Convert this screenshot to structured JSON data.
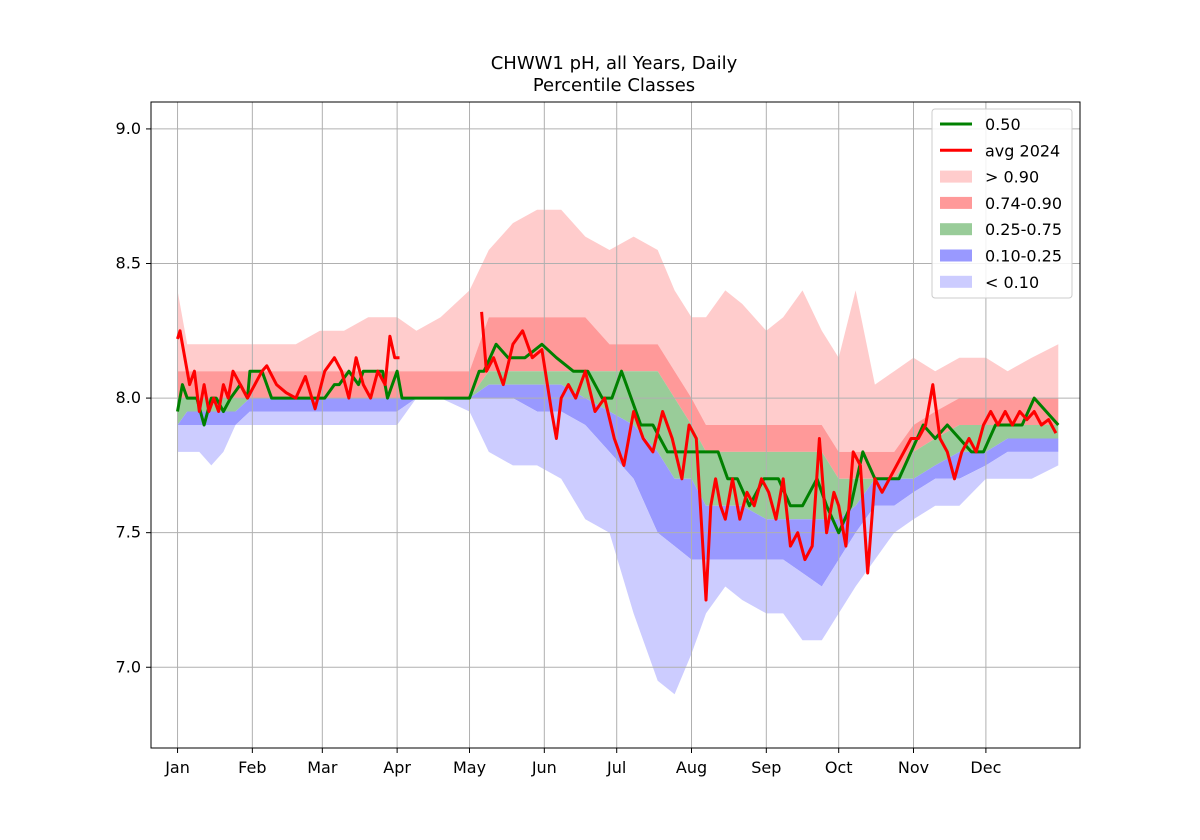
{
  "chart_data": {
    "type": "area",
    "title": "CHWW1 pH, all Years, Daily",
    "subtitle": "Percentile Classes",
    "xlabel": "",
    "ylabel": "",
    "x_unit": "day of year",
    "xlim": [
      -10,
      375
    ],
    "ylim": [
      6.7,
      9.1
    ],
    "grid": true,
    "legend_position": "top-right",
    "x_ticks": [
      {
        "label": "Jan",
        "day": 1
      },
      {
        "label": "Feb",
        "day": 32
      },
      {
        "label": "Mar",
        "day": 61
      },
      {
        "label": "Apr",
        "day": 92
      },
      {
        "label": "May",
        "day": 122
      },
      {
        "label": "Jun",
        "day": 153
      },
      {
        "label": "Jul",
        "day": 183
      },
      {
        "label": "Aug",
        "day": 214
      },
      {
        "label": "Sep",
        "day": 245
      },
      {
        "label": "Oct",
        "day": 275
      },
      {
        "label": "Nov",
        "day": 306
      },
      {
        "label": "Dec",
        "day": 336
      }
    ],
    "y_ticks": [
      "7.0",
      "7.5",
      "8.0",
      "8.5",
      "9.0"
    ],
    "band_days": [
      1,
      5,
      10,
      15,
      20,
      25,
      31,
      40,
      50,
      60,
      70,
      80,
      92,
      100,
      110,
      122,
      130,
      140,
      150,
      160,
      170,
      180,
      190,
      200,
      207,
      214,
      220,
      228,
      235,
      245,
      252,
      260,
      268,
      275,
      282,
      290,
      298,
      306,
      315,
      325,
      336,
      345,
      355,
      366
    ],
    "series": [
      {
        "name": "> 0.90",
        "kind": "band",
        "color": "#ffcccc",
        "lower": [
          8.1,
          8.1,
          8.1,
          8.1,
          8.1,
          8.1,
          8.1,
          8.1,
          8.1,
          8.1,
          8.1,
          8.1,
          8.1,
          8.1,
          8.1,
          8.1,
          8.3,
          8.3,
          8.3,
          8.3,
          8.3,
          8.2,
          8.2,
          8.2,
          8.1,
          8.0,
          7.9,
          7.9,
          7.9,
          7.9,
          7.9,
          7.9,
          7.9,
          7.8,
          7.8,
          7.8,
          7.8,
          7.9,
          7.95,
          8.0,
          8.0,
          8.0,
          8.0,
          8.0
        ],
        "upper": [
          8.4,
          8.2,
          8.2,
          8.2,
          8.2,
          8.2,
          8.2,
          8.2,
          8.2,
          8.25,
          8.25,
          8.3,
          8.3,
          8.25,
          8.3,
          8.4,
          8.55,
          8.65,
          8.7,
          8.7,
          8.6,
          8.55,
          8.6,
          8.55,
          8.4,
          8.3,
          8.3,
          8.4,
          8.35,
          8.25,
          8.3,
          8.4,
          8.25,
          8.15,
          8.4,
          8.05,
          8.1,
          8.15,
          8.1,
          8.15,
          8.15,
          8.1,
          8.15,
          8.2
        ]
      },
      {
        "name": "0.74-0.90",
        "kind": "band",
        "color": "#ff9999",
        "lower": [
          8.0,
          8.0,
          8.0,
          8.0,
          8.0,
          8.0,
          8.0,
          8.0,
          8.0,
          8.0,
          8.0,
          8.0,
          8.0,
          8.0,
          8.0,
          8.0,
          8.1,
          8.1,
          8.1,
          8.1,
          8.1,
          8.1,
          8.1,
          8.1,
          8.0,
          7.9,
          7.8,
          7.8,
          7.8,
          7.8,
          7.8,
          7.8,
          7.8,
          7.7,
          7.7,
          7.7,
          7.7,
          7.8,
          7.85,
          7.9,
          7.9,
          7.9,
          7.9,
          7.9
        ],
        "upper": [
          8.1,
          8.1,
          8.1,
          8.1,
          8.1,
          8.1,
          8.1,
          8.1,
          8.1,
          8.1,
          8.1,
          8.1,
          8.1,
          8.1,
          8.1,
          8.1,
          8.3,
          8.3,
          8.3,
          8.3,
          8.3,
          8.2,
          8.2,
          8.2,
          8.1,
          8.0,
          7.9,
          7.9,
          7.9,
          7.9,
          7.9,
          7.9,
          7.9,
          7.8,
          7.8,
          7.8,
          7.8,
          7.9,
          7.95,
          8.0,
          8.0,
          8.0,
          8.0,
          8.0
        ]
      },
      {
        "name": "0.25-0.75",
        "kind": "band",
        "color": "#99cc99",
        "lower": [
          7.9,
          7.95,
          7.95,
          7.95,
          7.95,
          7.95,
          8.0,
          8.0,
          8.0,
          8.0,
          8.0,
          8.0,
          8.0,
          8.0,
          8.0,
          8.0,
          8.05,
          8.05,
          8.05,
          8.05,
          8.0,
          7.95,
          7.9,
          7.8,
          7.7,
          7.7,
          7.6,
          7.6,
          7.6,
          7.55,
          7.55,
          7.55,
          7.55,
          7.55,
          7.6,
          7.7,
          7.7,
          7.7,
          7.75,
          7.8,
          7.8,
          7.85,
          7.85,
          7.85
        ],
        "upper": [
          8.0,
          8.0,
          8.0,
          8.0,
          8.0,
          8.0,
          8.0,
          8.0,
          8.0,
          8.0,
          8.0,
          8.0,
          8.0,
          8.0,
          8.0,
          8.0,
          8.1,
          8.1,
          8.1,
          8.1,
          8.1,
          8.1,
          8.1,
          8.1,
          8.0,
          7.9,
          7.8,
          7.8,
          7.8,
          7.8,
          7.8,
          7.8,
          7.8,
          7.7,
          7.7,
          7.7,
          7.7,
          7.8,
          7.85,
          7.9,
          7.9,
          7.9,
          7.9,
          7.9
        ]
      },
      {
        "name": "0.10-0.25",
        "kind": "band",
        "color": "#9999ff",
        "lower": [
          7.9,
          7.9,
          7.9,
          7.9,
          7.9,
          7.9,
          7.95,
          7.95,
          7.95,
          7.95,
          7.95,
          7.95,
          7.95,
          8.0,
          8.0,
          8.0,
          8.0,
          8.0,
          7.95,
          7.95,
          7.9,
          7.8,
          7.7,
          7.5,
          7.45,
          7.4,
          7.4,
          7.4,
          7.4,
          7.4,
          7.4,
          7.35,
          7.3,
          7.4,
          7.5,
          7.6,
          7.6,
          7.65,
          7.7,
          7.7,
          7.75,
          7.8,
          7.8,
          7.8
        ],
        "upper": [
          7.9,
          7.95,
          7.95,
          7.95,
          7.95,
          7.95,
          8.0,
          8.0,
          8.0,
          8.0,
          8.0,
          8.0,
          8.0,
          8.0,
          8.0,
          8.0,
          8.05,
          8.05,
          8.05,
          8.05,
          8.0,
          7.95,
          7.9,
          7.8,
          7.7,
          7.7,
          7.6,
          7.6,
          7.6,
          7.55,
          7.55,
          7.55,
          7.55,
          7.55,
          7.6,
          7.7,
          7.7,
          7.7,
          7.75,
          7.8,
          7.8,
          7.85,
          7.85,
          7.85
        ]
      },
      {
        "name": "< 0.10",
        "kind": "band",
        "color": "#ccccff",
        "lower": [
          7.8,
          7.8,
          7.8,
          7.75,
          7.8,
          7.9,
          7.9,
          7.9,
          7.9,
          7.9,
          7.9,
          7.9,
          7.9,
          8.0,
          8.0,
          7.95,
          7.8,
          7.75,
          7.75,
          7.7,
          7.55,
          7.5,
          7.2,
          6.95,
          6.9,
          7.05,
          7.2,
          7.3,
          7.25,
          7.2,
          7.2,
          7.1,
          7.1,
          7.2,
          7.3,
          7.4,
          7.5,
          7.55,
          7.6,
          7.6,
          7.7,
          7.7,
          7.7,
          7.75
        ],
        "upper": [
          7.9,
          7.9,
          7.9,
          7.9,
          7.9,
          7.9,
          7.95,
          7.95,
          7.95,
          7.95,
          7.95,
          7.95,
          7.95,
          8.0,
          8.0,
          8.0,
          8.0,
          8.0,
          7.95,
          7.95,
          7.9,
          7.8,
          7.7,
          7.5,
          7.45,
          7.4,
          7.4,
          7.4,
          7.4,
          7.4,
          7.4,
          7.35,
          7.3,
          7.4,
          7.5,
          7.6,
          7.6,
          7.65,
          7.7,
          7.7,
          7.75,
          7.8,
          7.8,
          7.8
        ]
      },
      {
        "name": "0.50",
        "kind": "line",
        "color": "#008000",
        "x": [
          1,
          3,
          5,
          9,
          12,
          15,
          17,
          20,
          23,
          27,
          30,
          31,
          33,
          36,
          40,
          45,
          55,
          62,
          66,
          68,
          72,
          76,
          78,
          82,
          86,
          88,
          90,
          92,
          94,
          105,
          110,
          112,
          118,
          122,
          126,
          128,
          133,
          138,
          140,
          145,
          152,
          158,
          165,
          171,
          177,
          181,
          185,
          189,
          193,
          198,
          204,
          209,
          213,
          217,
          221,
          225,
          229,
          233,
          238,
          244,
          250,
          255,
          260,
          266,
          270,
          275,
          280,
          285,
          290,
          295,
          300,
          305,
          310,
          315,
          320,
          325,
          330,
          335,
          340,
          346,
          351,
          356,
          366
        ],
        "y": [
          7.95,
          8.05,
          8.0,
          8.0,
          7.9,
          8.0,
          8.0,
          7.95,
          8.0,
          8.05,
          8.0,
          8.1,
          8.1,
          8.1,
          8.0,
          8.0,
          8.0,
          8.0,
          8.05,
          8.05,
          8.1,
          8.05,
          8.1,
          8.1,
          8.1,
          8.0,
          8.05,
          8.1,
          8.0,
          8.0,
          8.0,
          8.0,
          8.0,
          8.0,
          8.1,
          8.1,
          8.2,
          8.15,
          8.15,
          8.15,
          8.2,
          8.15,
          8.1,
          8.1,
          8.0,
          8.0,
          8.1,
          8.0,
          7.9,
          7.9,
          7.8,
          7.8,
          7.8,
          7.8,
          7.8,
          7.8,
          7.7,
          7.7,
          7.6,
          7.7,
          7.7,
          7.6,
          7.6,
          7.7,
          7.6,
          7.5,
          7.6,
          7.8,
          7.7,
          7.7,
          7.7,
          7.8,
          7.9,
          7.85,
          7.9,
          7.85,
          7.8,
          7.8,
          7.9,
          7.9,
          7.9,
          8.0,
          7.9
        ]
      },
      {
        "name": "avg 2024",
        "kind": "line",
        "color": "#ff0000",
        "x": [
          1,
          2,
          4,
          6,
          8,
          10,
          12,
          14,
          16,
          18,
          20,
          22,
          24,
          27,
          30,
          33,
          36,
          38,
          42,
          46,
          50,
          54,
          58,
          62,
          66,
          69,
          72,
          75,
          78,
          81,
          84,
          87,
          89,
          91,
          93
        ],
        "y": [
          8.22,
          8.25,
          8.15,
          8.05,
          8.1,
          7.95,
          8.05,
          7.95,
          8.0,
          7.95,
          8.05,
          8.0,
          8.1,
          8.05,
          8.0,
          8.05,
          8.1,
          8.12,
          8.05,
          8.02,
          8.0,
          8.08,
          7.96,
          8.1,
          8.15,
          8.1,
          8.0,
          8.15,
          8.05,
          8.0,
          8.1,
          8.05,
          8.23,
          8.15,
          8.15
        ]
      },
      {
        "name": "avg 2024",
        "kind": "line",
        "color": "#ff0000",
        "legend": false,
        "x": [
          127,
          129,
          132,
          136,
          140,
          144,
          148,
          152,
          156,
          158,
          160,
          163,
          166,
          170,
          174,
          178,
          182,
          186,
          190,
          194,
          198,
          202,
          206,
          210,
          213,
          216,
          218,
          220,
          222,
          224,
          226,
          228,
          231,
          234,
          237,
          240,
          243,
          246,
          249,
          252,
          255,
          258,
          261,
          264,
          267,
          270,
          273,
          275,
          278,
          281,
          284,
          287,
          290,
          293,
          296,
          299,
          302,
          305,
          308,
          311,
          314,
          317,
          320,
          323,
          326,
          329,
          332,
          335,
          338,
          341,
          344,
          347,
          350,
          353,
          356,
          359,
          362,
          365
        ],
        "y": [
          8.32,
          8.1,
          8.15,
          8.05,
          8.2,
          8.25,
          8.15,
          8.18,
          7.95,
          7.85,
          8.0,
          8.05,
          8.0,
          8.1,
          7.95,
          8.0,
          7.85,
          7.75,
          7.95,
          7.85,
          7.8,
          7.95,
          7.85,
          7.7,
          7.9,
          7.85,
          7.55,
          7.25,
          7.6,
          7.7,
          7.6,
          7.55,
          7.7,
          7.55,
          7.65,
          7.6,
          7.7,
          7.65,
          7.55,
          7.7,
          7.45,
          7.5,
          7.4,
          7.45,
          7.85,
          7.5,
          7.65,
          7.6,
          7.45,
          7.8,
          7.75,
          7.35,
          7.7,
          7.65,
          7.7,
          7.75,
          7.8,
          7.85,
          7.85,
          7.9,
          8.05,
          7.85,
          7.8,
          7.7,
          7.8,
          7.85,
          7.8,
          7.9,
          7.95,
          7.9,
          7.95,
          7.9,
          7.95,
          7.92,
          7.95,
          7.9,
          7.92,
          7.87
        ]
      }
    ],
    "legend": [
      {
        "label": "0.50",
        "color": "#008000",
        "kind": "line"
      },
      {
        "label": "avg 2024",
        "color": "#ff0000",
        "kind": "line"
      },
      {
        "label": "> 0.90",
        "color": "#ffcccc",
        "kind": "patch"
      },
      {
        "label": "0.74-0.90",
        "color": "#ff9999",
        "kind": "patch"
      },
      {
        "label": "0.25-0.75",
        "color": "#99cc99",
        "kind": "patch"
      },
      {
        "label": "0.10-0.25",
        "color": "#9999ff",
        "kind": "patch"
      },
      {
        "label": "< 0.10",
        "color": "#ccccff",
        "kind": "patch"
      }
    ]
  }
}
